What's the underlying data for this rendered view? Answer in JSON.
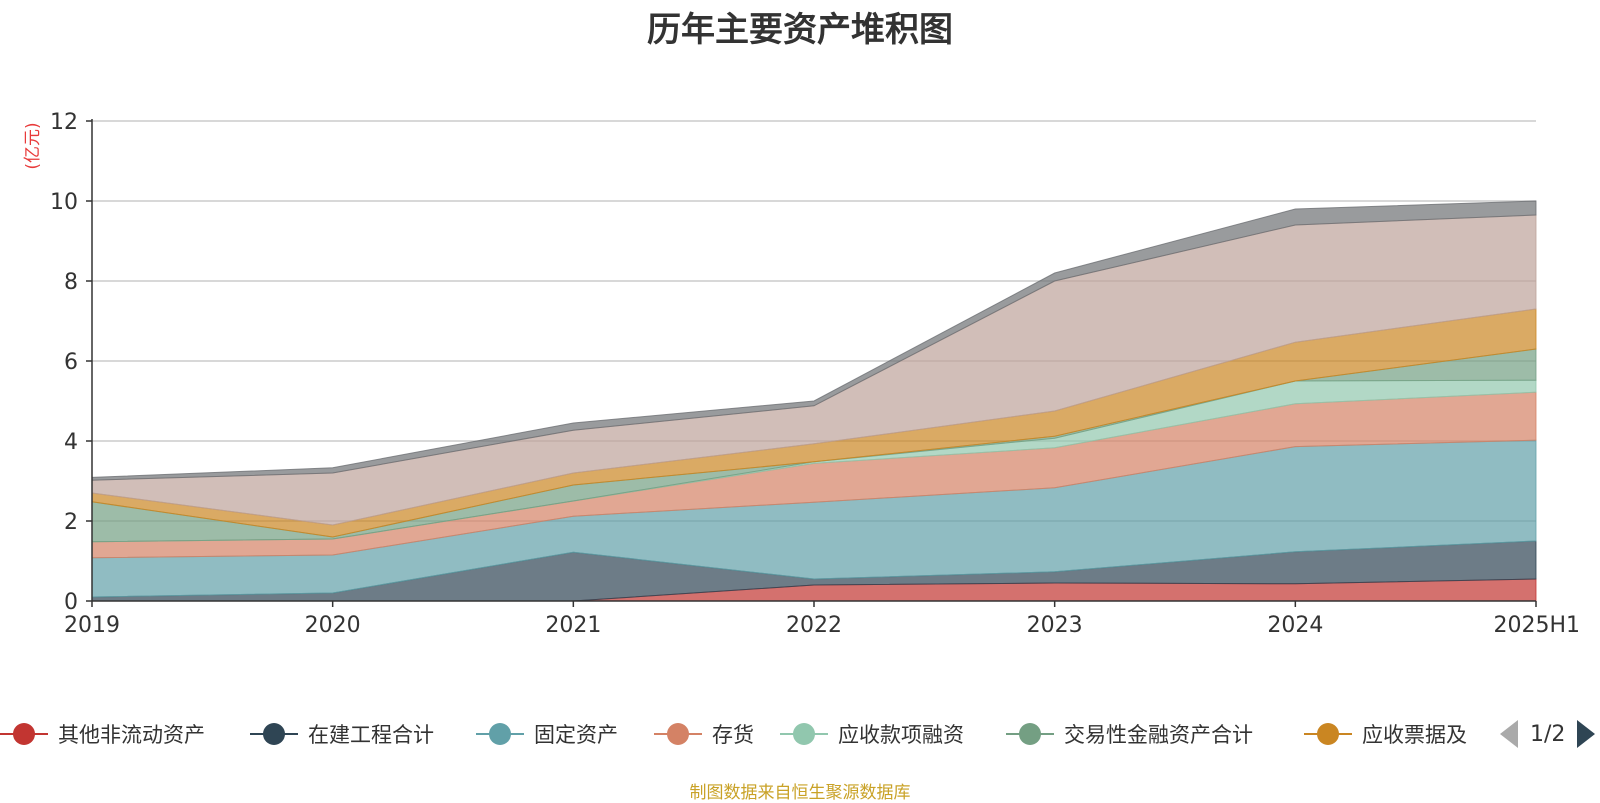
{
  "chart_data": {
    "type": "area",
    "stacked": true,
    "title": "历年主要资产堆积图",
    "unit_label": "(亿元)",
    "categories": [
      "2019",
      "2020",
      "2021",
      "2022",
      "2023",
      "2024",
      "2025H1"
    ],
    "ylim": [
      0,
      12
    ],
    "yticks": [
      "0",
      "2",
      "4",
      "6",
      "8",
      "10",
      "12"
    ],
    "grid": true,
    "legend_position": "bottom",
    "series": [
      {
        "name": "其他非流动资产",
        "color": "#c23531",
        "values": [
          0.0,
          0.0,
          0.0,
          0.4,
          0.45,
          0.43,
          0.55
        ]
      },
      {
        "name": "在建工程合计",
        "color": "#2f4554",
        "values": [
          0.1,
          0.2,
          1.22,
          0.15,
          0.28,
          0.8,
          0.95
        ]
      },
      {
        "name": "固定资产",
        "color": "#61a0a8",
        "values": [
          0.98,
          0.95,
          0.9,
          1.92,
          2.1,
          2.63,
          2.52
        ]
      },
      {
        "name": "存货",
        "color": "#d48265",
        "values": [
          0.4,
          0.4,
          0.38,
          0.97,
          1.0,
          1.07,
          1.2
        ]
      },
      {
        "name": "应收款项融资",
        "color": "#91c7ae",
        "values": [
          0.0,
          0.0,
          0.0,
          0.04,
          0.24,
          0.57,
          0.3
        ]
      },
      {
        "name": "交易性金融资产合计",
        "color": "#749f83",
        "values": [
          1.0,
          0.05,
          0.4,
          0.0,
          0.05,
          0.0,
          0.78
        ]
      },
      {
        "name": "应收票据及",
        "color": "#ca8622",
        "values": [
          0.22,
          0.3,
          0.3,
          0.45,
          0.63,
          0.97,
          1.0
        ]
      },
      {
        "color": "#bda29a",
        "values": [
          0.32,
          1.3,
          1.07,
          0.95,
          3.25,
          2.93,
          2.35
        ]
      },
      {
        "color": "#6e7074",
        "values": [
          0.07,
          0.13,
          0.18,
          0.12,
          0.2,
          0.4,
          0.35
        ]
      }
    ]
  },
  "pager": {
    "text": "1/2"
  },
  "source": "制图数据来自恒生聚源数据库"
}
